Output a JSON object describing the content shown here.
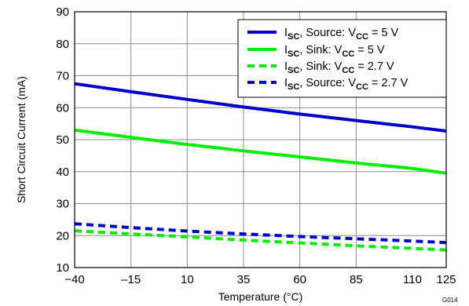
{
  "chart_data": {
    "type": "line",
    "xlabel": "Temperature (°C)",
    "ylabel": "Short Circuit Current (mA)",
    "xlim": [
      -40,
      125
    ],
    "ylim": [
      10,
      90
    ],
    "xticks": [
      -40,
      -15,
      10,
      35,
      60,
      85,
      110,
      125
    ],
    "xtick_labels": [
      "−40",
      "–15",
      "10",
      "35",
      "60",
      "85",
      "110",
      "125"
    ],
    "yticks": [
      10,
      20,
      30,
      40,
      50,
      60,
      70,
      80,
      90
    ],
    "ytick_labels": [
      "10",
      "20",
      "30",
      "40",
      "50",
      "60",
      "70",
      "80",
      "90"
    ],
    "grid": true,
    "legend_position": "top-right",
    "figure_id": "G014",
    "series": [
      {
        "name": "ISC, Source: VCC = 5 V",
        "label_parts": [
          "I",
          "SC",
          ", Source: V",
          "CC",
          " =  5 V"
        ],
        "color": "#0000cc",
        "style": "solid",
        "x": [
          -40,
          -15,
          10,
          35,
          60,
          85,
          110,
          125
        ],
        "y": [
          67.5,
          65.0,
          62.6,
          60.2,
          58.0,
          56.0,
          54.0,
          52.7
        ]
      },
      {
        "name": "ISC, Sink: VCC = 5 V",
        "label_parts": [
          "I",
          "SC",
          ", Sink: V",
          "CC",
          " =  5 V"
        ],
        "color": "#00ee00",
        "style": "solid",
        "x": [
          -40,
          -15,
          10,
          35,
          60,
          85,
          110,
          125
        ],
        "y": [
          53.0,
          50.7,
          48.5,
          46.5,
          44.6,
          42.7,
          41.0,
          39.5
        ]
      },
      {
        "name": "ISC, Sink: VCC = 2.7 V",
        "label_parts": [
          "I",
          "SC",
          ", Sink: V",
          "CC",
          " =  2.7 V"
        ],
        "color": "#00ee00",
        "style": "dashed",
        "x": [
          -40,
          -15,
          10,
          35,
          60,
          85,
          110,
          125
        ],
        "y": [
          21.5,
          20.5,
          19.6,
          18.6,
          17.7,
          16.8,
          16.0,
          15.5
        ]
      },
      {
        "name": "ISC, Source: VCC = 2.7 V",
        "label_parts": [
          "I",
          "SC",
          ", Source: V",
          "CC",
          " =  2.7 V"
        ],
        "color": "#0000cc",
        "style": "dashed",
        "x": [
          -40,
          -15,
          10,
          35,
          60,
          85,
          110,
          125
        ],
        "y": [
          23.7,
          22.5,
          21.4,
          20.5,
          19.7,
          19.0,
          18.3,
          17.8
        ]
      }
    ]
  }
}
